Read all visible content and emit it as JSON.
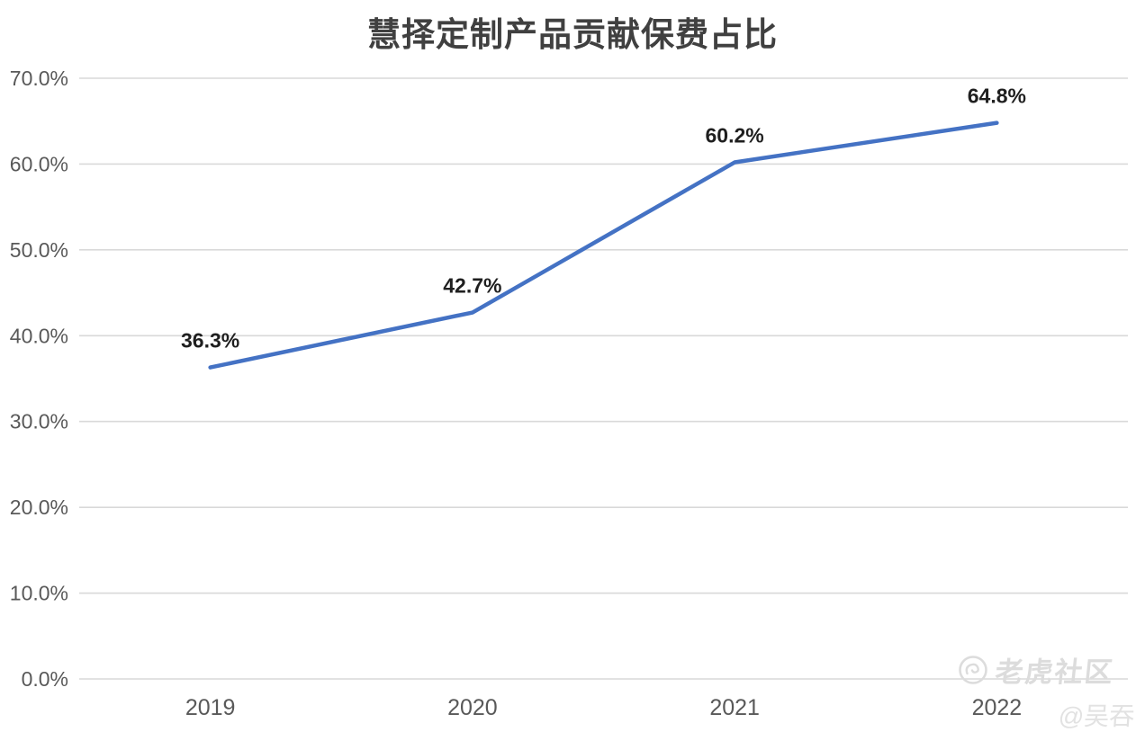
{
  "chart_data": {
    "type": "line",
    "title": "慧择定制产品贡献保费占比",
    "categories": [
      "2019",
      "2020",
      "2021",
      "2022"
    ],
    "series": [
      {
        "name": "慧择定制产品贡献保费占比",
        "values": [
          36.3,
          42.7,
          60.2,
          64.8
        ]
      }
    ],
    "data_labels": [
      "36.3%",
      "42.7%",
      "60.2%",
      "64.8%"
    ],
    "xlabel": "",
    "ylabel": "",
    "ylim": [
      0,
      70
    ],
    "ytick_step": 10,
    "ytick_labels": [
      "0.0%",
      "10.0%",
      "20.0%",
      "30.0%",
      "40.0%",
      "50.0%",
      "60.0%",
      "70.0%"
    ],
    "grid": true,
    "legend": "none",
    "line_color": "#4472c4",
    "label_color": "#1f1f1f",
    "axis_text_color": "#595959",
    "grid_color": "#d9d9d9"
  },
  "watermark": {
    "brand": "老虎社区",
    "author": "@吴吞",
    "logo_icon": "tiger-circle-logo",
    "color": "#dcdcdc"
  }
}
